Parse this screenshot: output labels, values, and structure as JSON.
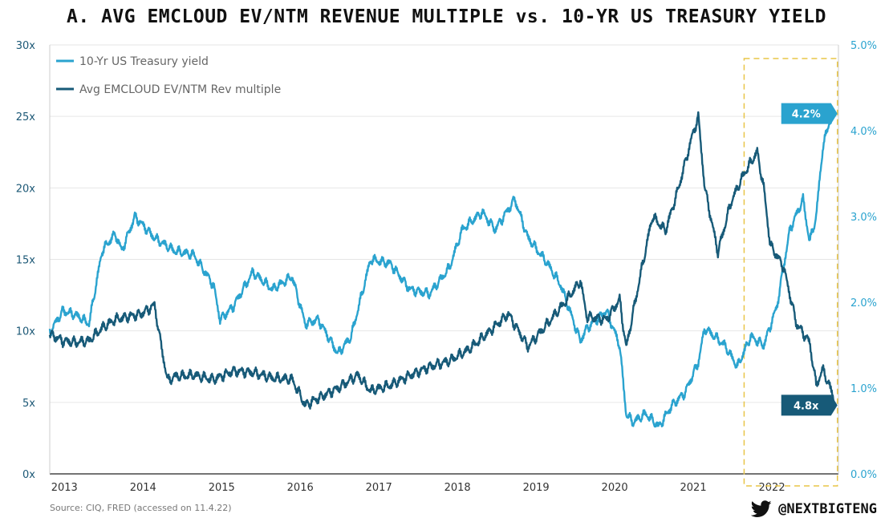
{
  "chart_data": {
    "type": "line",
    "title": "A. AVG EMCLOUD EV/NTM REVENUE MULTIPLE vs. 10-YR US TREASURY YIELD",
    "x_ticks": [
      "2013",
      "2014",
      "2015",
      "2016",
      "2017",
      "2018",
      "2019",
      "2020",
      "2021",
      "2022"
    ],
    "y_left": {
      "lim": [
        0,
        30
      ],
      "ticks": [
        "0x",
        "5x",
        "10x",
        "15x",
        "20x",
        "25x",
        "30x"
      ]
    },
    "y_right": {
      "lim": [
        0,
        5
      ],
      "ticks": [
        "0.0%",
        "1.0%",
        "2.0%",
        "3.0%",
        "4.0%",
        "5.0%"
      ]
    },
    "grid": true,
    "legend_position": "top-left",
    "series": [
      {
        "name": "10-Yr US Treasury yield",
        "axis": "right",
        "unit": "%",
        "color": "#2aa3cf",
        "points": [
          [
            "2012-11",
            1.65
          ],
          [
            "2013-01",
            1.9
          ],
          [
            "2013-03",
            1.85
          ],
          [
            "2013-05",
            1.75
          ],
          [
            "2013-07",
            2.6
          ],
          [
            "2013-09",
            2.8
          ],
          [
            "2013-10",
            2.6
          ],
          [
            "2013-12",
            3.0
          ],
          [
            "2014-03",
            2.75
          ],
          [
            "2014-06",
            2.6
          ],
          [
            "2014-09",
            2.55
          ],
          [
            "2014-12",
            2.2
          ],
          [
            "2015-01",
            1.8
          ],
          [
            "2015-03",
            1.95
          ],
          [
            "2015-06",
            2.35
          ],
          [
            "2015-09",
            2.15
          ],
          [
            "2015-12",
            2.3
          ],
          [
            "2016-02",
            1.75
          ],
          [
            "2016-04",
            1.8
          ],
          [
            "2016-07",
            1.4
          ],
          [
            "2016-09",
            1.6
          ],
          [
            "2016-11",
            2.2
          ],
          [
            "2016-12",
            2.5
          ],
          [
            "2017-03",
            2.45
          ],
          [
            "2017-06",
            2.15
          ],
          [
            "2017-09",
            2.1
          ],
          [
            "2017-12",
            2.4
          ],
          [
            "2018-02",
            2.85
          ],
          [
            "2018-05",
            3.05
          ],
          [
            "2018-07",
            2.85
          ],
          [
            "2018-10",
            3.2
          ],
          [
            "2018-12",
            2.75
          ],
          [
            "2019-03",
            2.45
          ],
          [
            "2019-05",
            2.2
          ],
          [
            "2019-08",
            1.55
          ],
          [
            "2019-09",
            1.7
          ],
          [
            "2019-12",
            1.9
          ],
          [
            "2020-02",
            1.5
          ],
          [
            "2020-03",
            0.7
          ],
          [
            "2020-04",
            0.6
          ],
          [
            "2020-06",
            0.7
          ],
          [
            "2020-08",
            0.55
          ],
          [
            "2020-10",
            0.8
          ],
          [
            "2020-12",
            0.95
          ],
          [
            "2021-02",
            1.3
          ],
          [
            "2021-03",
            1.7
          ],
          [
            "2021-06",
            1.5
          ],
          [
            "2021-08",
            1.25
          ],
          [
            "2021-10",
            1.6
          ],
          [
            "2021-12",
            1.5
          ],
          [
            "2022-02",
            1.95
          ],
          [
            "2022-04",
            2.85
          ],
          [
            "2022-06",
            3.2
          ],
          [
            "2022-07",
            2.7
          ],
          [
            "2022-08",
            3.0
          ],
          [
            "2022-09",
            3.8
          ],
          [
            "2022-10",
            4.1
          ],
          [
            "2022-11",
            4.2
          ]
        ]
      },
      {
        "name": "Avg EMCLOUD EV/NTM Rev multiple",
        "axis": "left",
        "unit": "x",
        "color": "#175a78",
        "points": [
          [
            "2012-11",
            9.8
          ],
          [
            "2013-01",
            9.3
          ],
          [
            "2013-03",
            9.2
          ],
          [
            "2013-05",
            9.3
          ],
          [
            "2013-07",
            10.2
          ],
          [
            "2013-09",
            10.8
          ],
          [
            "2013-11",
            11.0
          ],
          [
            "2014-01",
            11.2
          ],
          [
            "2014-03",
            11.8
          ],
          [
            "2014-04",
            9.0
          ],
          [
            "2014-05",
            6.5
          ],
          [
            "2014-06",
            6.8
          ],
          [
            "2014-09",
            6.9
          ],
          [
            "2014-12",
            6.6
          ],
          [
            "2015-03",
            7.2
          ],
          [
            "2015-06",
            7.1
          ],
          [
            "2015-09",
            6.7
          ],
          [
            "2015-12",
            6.6
          ],
          [
            "2016-02",
            4.8
          ],
          [
            "2016-04",
            5.3
          ],
          [
            "2016-07",
            6.0
          ],
          [
            "2016-10",
            6.9
          ],
          [
            "2016-12",
            5.8
          ],
          [
            "2017-03",
            6.2
          ],
          [
            "2017-06",
            6.9
          ],
          [
            "2017-09",
            7.5
          ],
          [
            "2017-12",
            7.9
          ],
          [
            "2018-03",
            8.7
          ],
          [
            "2018-06",
            9.9
          ],
          [
            "2018-09",
            11.2
          ],
          [
            "2018-12",
            8.9
          ],
          [
            "2019-03",
            10.5
          ],
          [
            "2019-06",
            12.2
          ],
          [
            "2019-08",
            13.5
          ],
          [
            "2019-09",
            11.0
          ],
          [
            "2019-12",
            10.8
          ],
          [
            "2020-02",
            12.2
          ],
          [
            "2020-03",
            8.8
          ],
          [
            "2020-05",
            13.5
          ],
          [
            "2020-07",
            18.0
          ],
          [
            "2020-09",
            17.0
          ],
          [
            "2020-11",
            20.0
          ],
          [
            "2021-01",
            23.5
          ],
          [
            "2021-02",
            25.0
          ],
          [
            "2021-03",
            20.0
          ],
          [
            "2021-05",
            15.5
          ],
          [
            "2021-07",
            19.0
          ],
          [
            "2021-09",
            21.0
          ],
          [
            "2021-11",
            22.5
          ],
          [
            "2021-12",
            20.0
          ],
          [
            "2022-01",
            16.0
          ],
          [
            "2022-03",
            14.5
          ],
          [
            "2022-05",
            10.5
          ],
          [
            "2022-07",
            9.2
          ],
          [
            "2022-08",
            6.2
          ],
          [
            "2022-09",
            7.3
          ],
          [
            "2022-10",
            6.2
          ],
          [
            "2022-11",
            4.8
          ]
        ]
      }
    ],
    "callouts": [
      {
        "series": "10-Yr US Treasury yield",
        "label": "4.2%",
        "color": "#2aa3cf"
      },
      {
        "series": "Avg EMCLOUD EV/NTM Rev multiple",
        "label": "4.8x",
        "color": "#175a78"
      }
    ],
    "highlight": {
      "from": "2021-09",
      "to": "2022-11",
      "color": "#e8c547"
    },
    "source_note": "Source: CIQ, FRED (accessed on 11.4.22)",
    "handle": "@NEXTBIGTENG"
  }
}
